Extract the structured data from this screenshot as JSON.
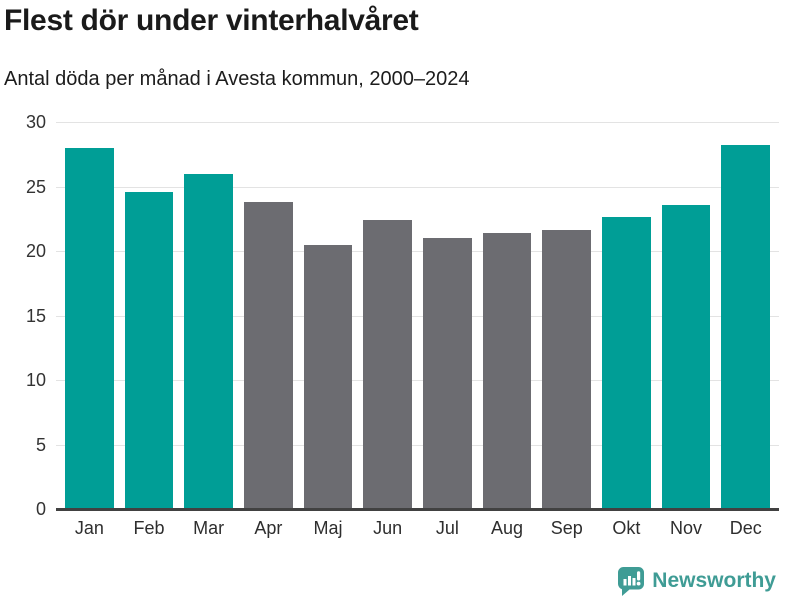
{
  "title": "Flest dör under vinterhalvåret",
  "subtitle": "Antal döda per månad i Avesta kommun, 2000–2024",
  "colors": {
    "highlight": "#009e96",
    "neutral": "#6c6c71",
    "gridline": "#e3e3e3",
    "axis_line": "#414141",
    "brand": "#3f9c95"
  },
  "branding": {
    "wordmark": "Newsworthy",
    "icon": "newsworthy-speech-bubble-bar-chart-icon"
  },
  "chart_data": {
    "type": "bar",
    "title": "Flest dör under vinterhalvåret",
    "subtitle": "Antal döda per månad i Avesta kommun, 2000–2024",
    "categories": [
      "Jan",
      "Feb",
      "Mar",
      "Apr",
      "Maj",
      "Jun",
      "Jul",
      "Aug",
      "Sep",
      "Okt",
      "Nov",
      "Dec"
    ],
    "values": [
      28.0,
      24.6,
      26.0,
      23.8,
      20.5,
      22.4,
      21.0,
      21.4,
      21.6,
      22.6,
      23.6,
      28.2
    ],
    "highlighted": [
      true,
      true,
      true,
      false,
      false,
      false,
      false,
      false,
      false,
      true,
      true,
      true
    ],
    "highlight_meaning": "winter half-year months (Okt–Mar) in teal, summer months (Apr–Sep) in gray",
    "xlabel": "",
    "ylabel": "",
    "ylim": [
      0,
      30
    ],
    "yticks": [
      0,
      5,
      10,
      15,
      20,
      25,
      30
    ],
    "grid": true,
    "legend": false
  }
}
